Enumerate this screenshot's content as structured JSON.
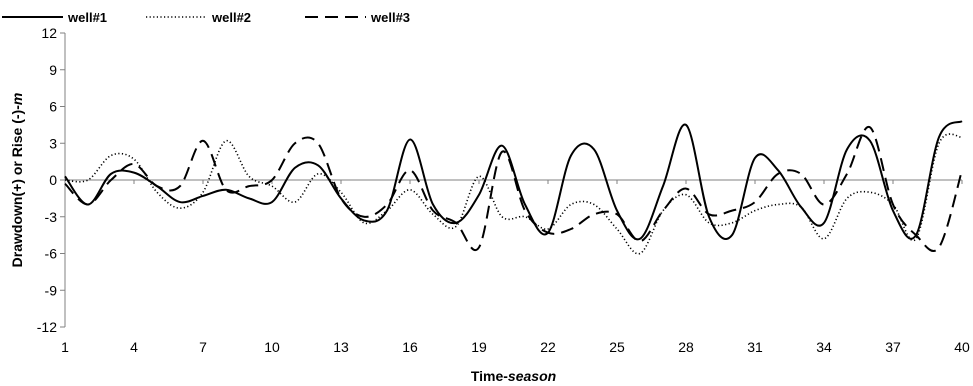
{
  "chart_data": {
    "type": "line",
    "title": "",
    "xlabel_prefix": "Time-",
    "xlabel_emph": "season",
    "ylabel_prefix": "Drawdown(+) or Rise (-)-",
    "ylabel_emph": "m",
    "xlim": [
      1,
      40
    ],
    "ylim": [
      -12,
      12
    ],
    "x_ticks": [
      "1",
      "4",
      "7",
      "10",
      "13",
      "16",
      "19",
      "22",
      "25",
      "28",
      "31",
      "34",
      "37",
      "40"
    ],
    "y_ticks": [
      "12",
      "9",
      "6",
      "3",
      "0",
      "-3",
      "-6",
      "-9",
      "-12"
    ],
    "x_tick_values": [
      1,
      4,
      7,
      10,
      13,
      16,
      19,
      22,
      25,
      28,
      31,
      34,
      37,
      40
    ],
    "y_tick_values": [
      12,
      9,
      6,
      3,
      0,
      -3,
      -6,
      -9,
      -12
    ],
    "grid": false,
    "zero_line": true,
    "legend_position": "top-left",
    "series": [
      {
        "name": "well#1",
        "style": "solid",
        "color": "#000000",
        "x": [
          1,
          2,
          3,
          4,
          5,
          6,
          7,
          8,
          9,
          10,
          11,
          12,
          13,
          14,
          15,
          16,
          17,
          18,
          19,
          20,
          21,
          22,
          23,
          24,
          25,
          26,
          27,
          28,
          29,
          30,
          31,
          32,
          33,
          34,
          35,
          36,
          37,
          38,
          39,
          40
        ],
        "values": [
          0.3,
          -2.0,
          0.5,
          0.6,
          -0.5,
          -1.8,
          -1.3,
          -0.8,
          -1.5,
          -1.8,
          1.0,
          1.2,
          -1.5,
          -3.3,
          -2.5,
          3.3,
          -2.0,
          -3.5,
          -1.2,
          2.8,
          -2.0,
          -4.3,
          2.0,
          2.5,
          -2.5,
          -4.8,
          -0.5,
          4.5,
          -3.0,
          -4.5,
          1.8,
          0.8,
          -2.2,
          -3.5,
          2.5,
          3.2,
          -2.5,
          -4.5,
          3.5,
          4.8
        ]
      },
      {
        "name": "well#2",
        "style": "dotted",
        "color": "#000000",
        "x": [
          1,
          2,
          3,
          4,
          5,
          6,
          7,
          8,
          9,
          10,
          11,
          12,
          13,
          14,
          15,
          16,
          17,
          18,
          19,
          20,
          21,
          22,
          23,
          24,
          25,
          26,
          27,
          28,
          29,
          30,
          31,
          32,
          33,
          34,
          35,
          36,
          37,
          38,
          39,
          40
        ],
        "values": [
          0.0,
          0.0,
          2.0,
          1.7,
          -1.0,
          -2.3,
          -1.0,
          3.2,
          0.3,
          -0.5,
          -1.8,
          0.5,
          -1.0,
          -3.5,
          -2.5,
          -0.8,
          -2.8,
          -3.8,
          0.3,
          -3.0,
          -3.0,
          -4.0,
          -2.0,
          -2.0,
          -4.0,
          -6.0,
          -2.5,
          -1.2,
          -3.5,
          -3.5,
          -2.5,
          -2.0,
          -2.2,
          -4.8,
          -1.5,
          -1.0,
          -2.0,
          -4.8,
          3.0,
          3.5
        ]
      },
      {
        "name": "well#3",
        "style": "dashed",
        "color": "#000000",
        "x": [
          1,
          2,
          3,
          4,
          5,
          6,
          7,
          8,
          9,
          10,
          11,
          12,
          13,
          14,
          15,
          16,
          17,
          18,
          19,
          20,
          21,
          22,
          23,
          24,
          25,
          26,
          27,
          28,
          29,
          30,
          31,
          32,
          33,
          34,
          35,
          36,
          37,
          38,
          39,
          40
        ],
        "values": [
          -0.3,
          -2.0,
          0.0,
          1.3,
          -0.5,
          -0.5,
          3.2,
          -0.8,
          -0.5,
          0.0,
          3.0,
          3.0,
          -1.5,
          -3.0,
          -2.0,
          0.8,
          -2.5,
          -3.5,
          -5.5,
          2.3,
          -2.5,
          -4.3,
          -4.0,
          -2.8,
          -2.8,
          -5.0,
          -2.5,
          -0.7,
          -2.8,
          -2.5,
          -1.8,
          0.5,
          0.5,
          -2.0,
          0.5,
          4.3,
          -2.0,
          -4.5,
          -5.5,
          0.8
        ]
      }
    ]
  }
}
